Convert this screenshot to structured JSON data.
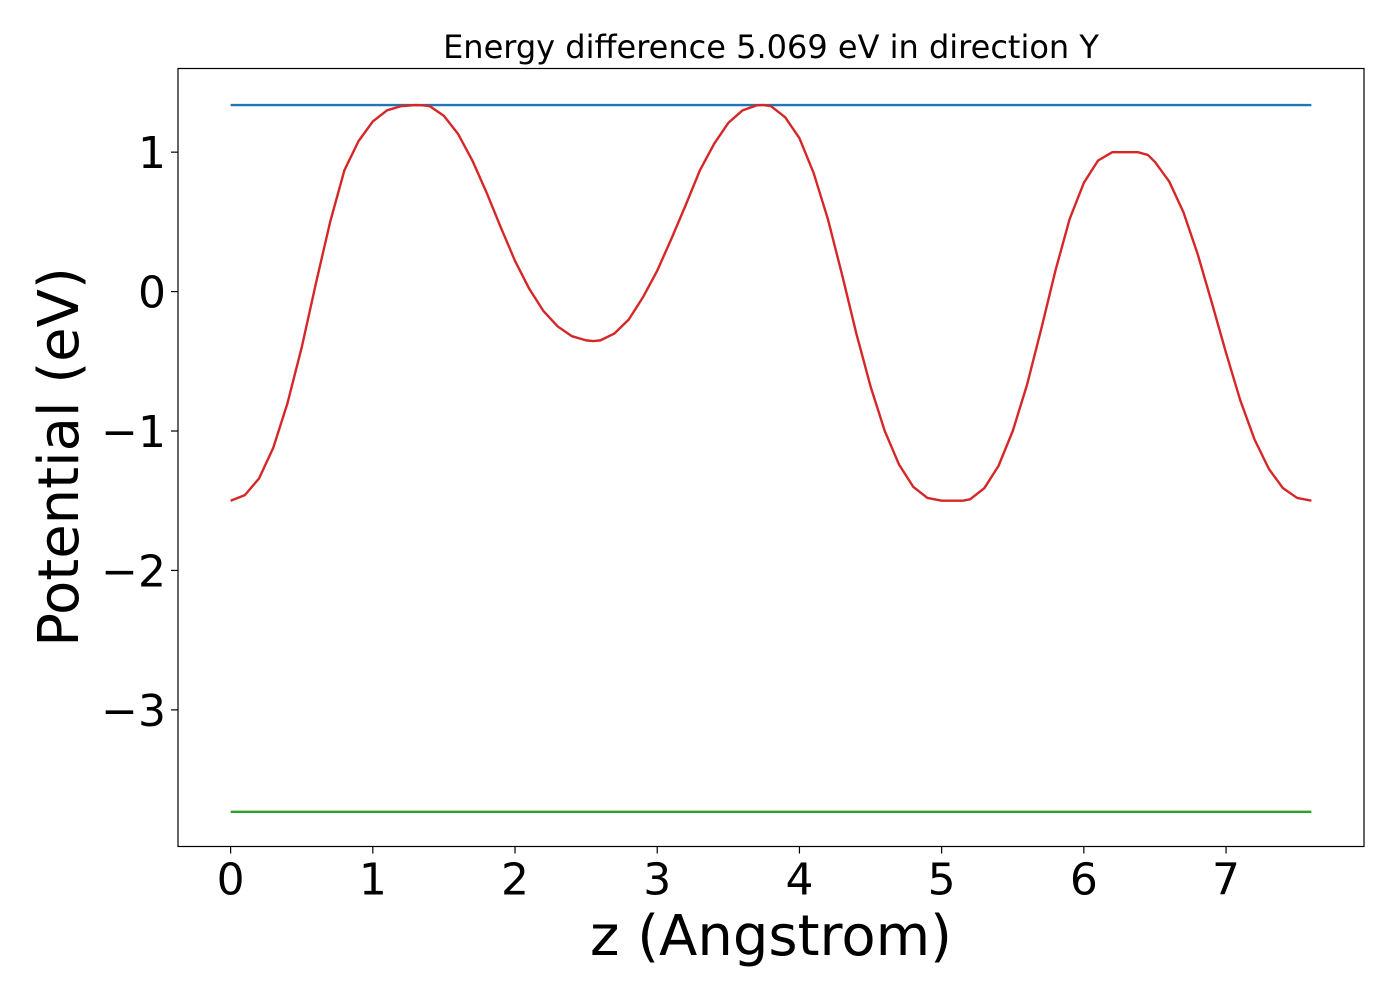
{
  "chart_data": {
    "type": "line",
    "title": "Energy difference 5.069 eV in direction Y",
    "xlabel": "z (Angstrom)",
    "ylabel": "Potential (eV)",
    "xlim": [
      -0.37,
      7.97
    ],
    "ylim": [
      -3.98,
      1.6
    ],
    "x_ticks": [
      {
        "value": 0,
        "label": "0"
      },
      {
        "value": 1,
        "label": "1"
      },
      {
        "value": 2,
        "label": "2"
      },
      {
        "value": 3,
        "label": "3"
      },
      {
        "value": 4,
        "label": "4"
      },
      {
        "value": 5,
        "label": "5"
      },
      {
        "value": 6,
        "label": "6"
      },
      {
        "value": 7,
        "label": "7"
      }
    ],
    "y_ticks": [
      {
        "value": 1,
        "label": "1"
      },
      {
        "value": 0,
        "label": "0"
      },
      {
        "value": -1,
        "label": "−1"
      },
      {
        "value": -2,
        "label": "−2"
      },
      {
        "value": -3,
        "label": "−3"
      }
    ],
    "grid": false,
    "legend": "none",
    "series": [
      {
        "color": "#1f77b4",
        "x": [
          0,
          7.6
        ],
        "y": [
          1.338,
          1.338
        ]
      },
      {
        "color": "#2ca02c",
        "x": [
          0,
          7.6
        ],
        "y": [
          -3.731,
          -3.731
        ]
      },
      {
        "color": "#d62728",
        "x": [
          0,
          0.1,
          0.2,
          0.3,
          0.4,
          0.5,
          0.6,
          0.7,
          0.8,
          0.9,
          1.0,
          1.1,
          1.2,
          1.3,
          1.35,
          1.4,
          1.5,
          1.6,
          1.7,
          1.8,
          1.9,
          2.0,
          2.1,
          2.2,
          2.3,
          2.4,
          2.5,
          2.55,
          2.6,
          2.7,
          2.8,
          2.9,
          3.0,
          3.1,
          3.2,
          3.3,
          3.4,
          3.5,
          3.6,
          3.7,
          3.75,
          3.8,
          3.9,
          4.0,
          4.1,
          4.2,
          4.3,
          4.4,
          4.5,
          4.6,
          4.7,
          4.8,
          4.9,
          5.0,
          5.1,
          5.15,
          5.2,
          5.3,
          5.4,
          5.5,
          5.6,
          5.7,
          5.8,
          5.9,
          6.0,
          6.1,
          6.2,
          6.3,
          6.38,
          6.45,
          6.5,
          6.6,
          6.7,
          6.8,
          6.9,
          7.0,
          7.1,
          7.2,
          7.3,
          7.4,
          7.5,
          7.6
        ],
        "y": [
          -1.5,
          -1.46,
          -1.34,
          -1.12,
          -0.8,
          -0.4,
          0.06,
          0.5,
          0.87,
          1.08,
          1.22,
          1.3,
          1.33,
          1.338,
          1.336,
          1.33,
          1.26,
          1.13,
          0.94,
          0.71,
          0.46,
          0.22,
          0.02,
          -0.14,
          -0.25,
          -0.32,
          -0.35,
          -0.355,
          -0.35,
          -0.3,
          -0.2,
          -0.04,
          0.15,
          0.38,
          0.62,
          0.87,
          1.06,
          1.21,
          1.3,
          1.336,
          1.338,
          1.33,
          1.25,
          1.1,
          0.85,
          0.52,
          0.12,
          -0.3,
          -0.68,
          -1.0,
          -1.24,
          -1.4,
          -1.48,
          -1.5,
          -1.5,
          -1.5,
          -1.49,
          -1.41,
          -1.25,
          -1.0,
          -0.67,
          -0.27,
          0.15,
          0.52,
          0.78,
          0.94,
          1.0,
          1.0,
          1.0,
          0.98,
          0.93,
          0.79,
          0.57,
          0.27,
          -0.08,
          -0.44,
          -0.78,
          -1.06,
          -1.27,
          -1.41,
          -1.48,
          -1.5
        ]
      }
    ]
  }
}
